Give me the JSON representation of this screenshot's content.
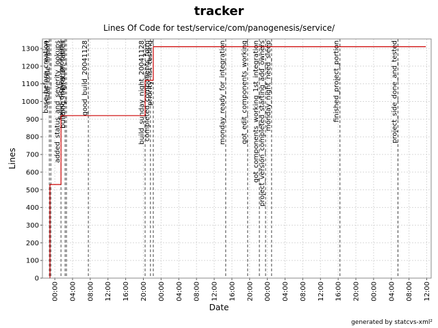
{
  "chart_data": {
    "type": "step",
    "title": "tracker",
    "subtitle": "Lines Of Code for test/service/com/panogenesis/service/",
    "x_label": "Date",
    "y_label": "Lines",
    "footer": "generated by statcvs-xml²",
    "grid": true,
    "x": [
      -1.24,
      -1.1,
      1.39,
      20.39,
      22.24,
      83.8
    ],
    "series": [
      {
        "name": "Lines",
        "color": "#cc0000",
        "values": [
          0,
          530,
          920,
          1120,
          1310,
          1310
        ]
      }
    ],
    "xlim": [
      -2.8,
      85
    ],
    "xticks": [
      {
        "value": 0,
        "label": "00:00"
      },
      {
        "value": 4,
        "label": "04:00"
      },
      {
        "value": 8,
        "label": "08:00"
      },
      {
        "value": 12,
        "label": "12:00"
      },
      {
        "value": 16,
        "label": "16:00"
      },
      {
        "value": 20,
        "label": "20:00"
      },
      {
        "value": 24,
        "label": "00:00"
      },
      {
        "value": 28,
        "label": "04:00"
      },
      {
        "value": 32,
        "label": "08:00"
      },
      {
        "value": 36,
        "label": "12:00"
      },
      {
        "value": 40,
        "label": "16:00"
      },
      {
        "value": 44,
        "label": "20:00"
      },
      {
        "value": 48,
        "label": "00:00"
      },
      {
        "value": 52,
        "label": "04:00"
      },
      {
        "value": 56,
        "label": "08:00"
      },
      {
        "value": 60,
        "label": "12:00"
      },
      {
        "value": 64,
        "label": "16:00"
      },
      {
        "value": 68,
        "label": "20:00"
      },
      {
        "value": 72,
        "label": "00:00"
      },
      {
        "value": 76,
        "label": "04:00"
      },
      {
        "value": 80,
        "label": "08:00"
      },
      {
        "value": 84,
        "label": "12:00"
      }
    ],
    "ylim": [
      0,
      1354
    ],
    "yticks": [
      0,
      100,
      200,
      300,
      400,
      500,
      600,
      700,
      800,
      900,
      1000,
      1100,
      1200,
      1300
    ],
    "markers": [
      {
        "label": "base_before_creation",
        "x": -1.24
      },
      {
        "label": "initial_code_import",
        "x": -0.9
      },
      {
        "label": "added_status_and_severity_lookups",
        "x": 1.39
      },
      {
        "label": "fixed_display_problems",
        "x": 2.32
      },
      {
        "label": "building_migration_tables",
        "x": 2.63
      },
      {
        "label": "good_build_20041128",
        "x": 7.57
      },
      {
        "label": "build_sunday_night_20041128",
        "x": 20.39
      },
      {
        "label": "completed_components_form",
        "x": 21.6
      },
      {
        "label": "priority_list_testing",
        "x": 22.24
      },
      {
        "label": "monday_ready_for_integration",
        "x": 38.6
      },
      {
        "label": "got_edit_components_working",
        "x": 43.55
      },
      {
        "label": "got_components_working_1st_integration",
        "x": 46.2
      },
      {
        "label": "project_version_completed_starting_add_owners",
        "x": 47.6
      },
      {
        "label": "monday_night_need_sleep",
        "x": 48.96
      },
      {
        "label": "finished_project_portion",
        "x": 64.4
      },
      {
        "label": "project_side_done_and_tested",
        "x": 77.5
      }
    ]
  }
}
